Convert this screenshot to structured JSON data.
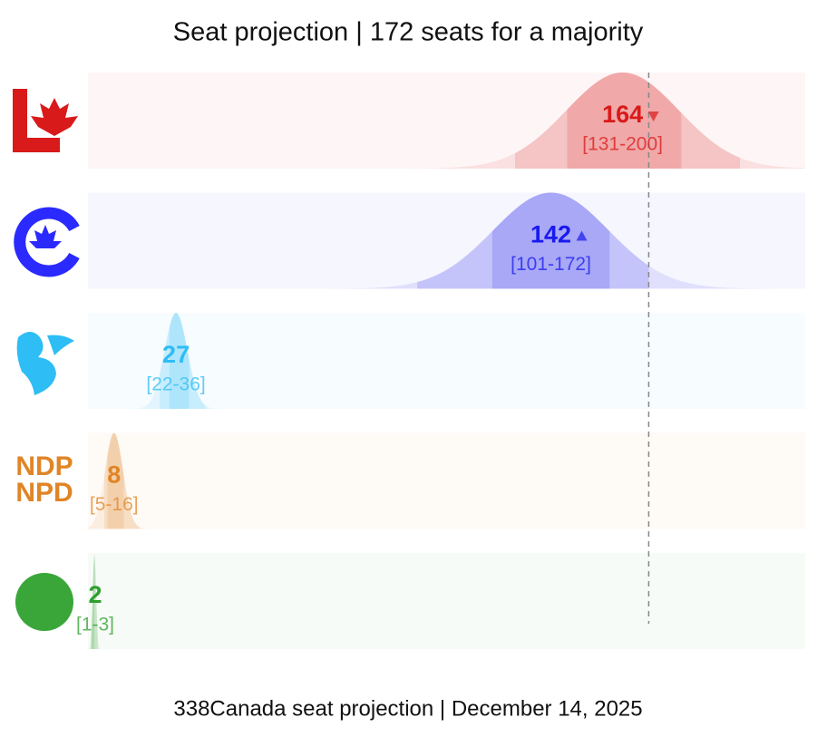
{
  "chart_data": {
    "type": "ridgeline",
    "title": "Seat projection | 172 seats for a majority",
    "footer": "338Canada seat projection | December 14, 2025",
    "xlim": [
      0,
      220
    ],
    "majority": 172,
    "logo_text": [
      "NDP",
      "NPD"
    ],
    "series": [
      {
        "color": "#d91a1a",
        "value": 164,
        "range": [
          131,
          200
        ],
        "range_label": "[131-200]",
        "inner_range": [
          147,
          182
        ],
        "trend": "down"
      },
      {
        "color": "#1a1aee",
        "value": 142,
        "range": [
          101,
          172
        ],
        "range_label": "[101-172]",
        "inner_range": [
          124,
          160
        ],
        "trend": "up"
      },
      {
        "color": "#2ebdf5",
        "value": 27,
        "range": [
          22,
          36
        ],
        "range_label": "[22-36]",
        "inner_range": [
          25,
          31
        ]
      },
      {
        "color": "#e08526",
        "value": 8,
        "range": [
          5,
          16
        ],
        "range_label": "[5-16]",
        "inner_range": [
          6,
          11
        ]
      },
      {
        "color": "#2e9e2e",
        "value": 2,
        "range": [
          1,
          3
        ],
        "range_label": "[1-3]",
        "inner_range": [
          1,
          2
        ]
      }
    ]
  }
}
